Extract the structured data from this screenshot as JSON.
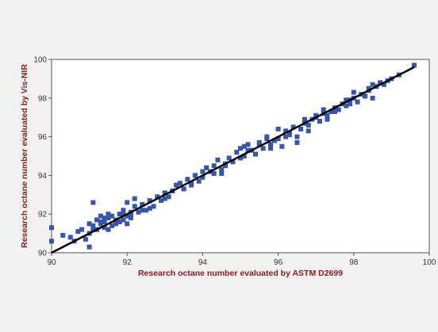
{
  "chart_data": {
    "type": "scatter",
    "title": "",
    "xlabel": "Research octane number evaluated by ASTM D2699",
    "ylabel": "Research octane number evaluated by Vis-NIR",
    "xlim": [
      90,
      100
    ],
    "ylim": [
      90,
      100
    ],
    "x_ticks": [
      "90",
      "92",
      "94",
      "96",
      "98",
      "100"
    ],
    "y_ticks": [
      "90",
      "92",
      "94",
      "96",
      "98",
      "100"
    ],
    "grid": false,
    "legend": "none",
    "colors": {
      "points": "#3a55a5",
      "fit_line": "#000000",
      "axis_title": "#8b1a1a",
      "plot_bg": "#ffffff",
      "figure_bg": "#f2f2f2"
    },
    "fit_line": {
      "from": [
        90.0,
        90.0
      ],
      "to": [
        99.6,
        99.6
      ]
    },
    "series": [
      {
        "x": [
          90.0,
          90.0,
          90.3,
          90.5,
          90.6,
          90.7,
          90.8,
          90.9,
          91.0,
          91.0,
          91.1,
          91.1,
          91.2,
          91.2,
          91.3,
          91.3,
          91.4,
          91.4,
          91.5,
          91.5,
          91.6,
          91.6,
          91.7,
          91.7,
          91.8,
          91.8,
          91.9,
          91.9,
          92.0,
          92.0,
          92.1,
          92.1,
          92.2,
          92.3,
          92.4,
          92.5,
          92.6,
          92.7,
          92.8,
          92.9,
          93.0,
          93.1,
          93.2,
          93.3,
          93.4,
          93.5,
          93.6,
          93.7,
          93.8,
          93.9,
          94.0,
          94.1,
          94.2,
          94.3,
          94.4,
          94.5,
          94.6,
          94.7,
          94.8,
          94.9,
          95.0,
          95.1,
          95.2,
          95.3,
          95.4,
          95.5,
          95.6,
          95.7,
          95.8,
          95.9,
          96.0,
          96.1,
          96.2,
          96.3,
          96.4,
          96.5,
          96.6,
          96.7,
          96.8,
          96.9,
          97.0,
          97.1,
          97.2,
          97.3,
          97.4,
          97.5,
          97.6,
          97.7,
          97.8,
          97.9,
          98.0,
          98.1,
          98.2,
          98.3,
          98.4,
          98.5,
          98.6,
          98.8,
          99.0,
          99.2,
          99.6,
          91.0,
          91.2,
          91.5,
          92.0,
          92.2,
          93.5,
          94.0,
          94.5,
          95.0,
          95.5,
          96.0,
          96.5,
          97.0,
          97.5,
          98.0,
          98.5,
          91.1,
          91.3,
          91.7,
          92.1,
          92.6,
          93.2,
          93.8,
          94.6,
          95.2,
          95.8,
          96.3,
          96.8,
          97.3,
          97.8,
          98.3,
          98.7,
          91.4,
          91.9,
          92.4,
          93.0,
          93.7,
          94.3,
          95.1,
          95.7,
          96.2,
          96.7,
          97.2,
          97.9,
          98.4,
          98.9
        ],
        "y": [
          90.6,
          91.3,
          90.9,
          90.8,
          90.6,
          91.1,
          91.2,
          90.7,
          91.5,
          91.0,
          92.6,
          91.4,
          91.2,
          91.7,
          91.6,
          91.9,
          91.3,
          91.6,
          91.8,
          91.2,
          91.4,
          91.9,
          91.7,
          91.5,
          92.0,
          91.6,
          92.2,
          91.7,
          91.9,
          92.6,
          92.1,
          91.8,
          92.4,
          92.1,
          92.5,
          92.2,
          92.7,
          92.4,
          92.9,
          92.7,
          93.1,
          92.9,
          93.2,
          93.5,
          93.6,
          93.3,
          93.8,
          93.5,
          94.0,
          93.7,
          93.9,
          94.4,
          94.2,
          94.5,
          94.8,
          94.3,
          94.6,
          94.9,
          94.7,
          95.2,
          95.4,
          95.0,
          95.6,
          95.3,
          95.1,
          95.7,
          95.4,
          96.0,
          95.6,
          95.8,
          95.9,
          95.5,
          96.3,
          96.1,
          96.5,
          96.0,
          96.4,
          96.7,
          96.3,
          96.9,
          97.0,
          96.8,
          97.2,
          97.1,
          97.3,
          97.5,
          97.4,
          97.7,
          97.6,
          97.9,
          98.0,
          97.8,
          98.2,
          98.1,
          98.4,
          98.0,
          98.6,
          98.7,
          99.0,
          99.2,
          99.7,
          90.3,
          91.7,
          92.0,
          91.5,
          92.8,
          93.3,
          94.2,
          94.1,
          94.9,
          95.6,
          96.4,
          95.7,
          97.1,
          97.3,
          98.3,
          98.7,
          91.2,
          91.5,
          91.5,
          91.9,
          92.3,
          93.2,
          94.0,
          94.5,
          95.3,
          95.4,
          96.2,
          96.6,
          96.9,
          97.9,
          98.1,
          98.8,
          91.8,
          92.0,
          92.2,
          92.8,
          93.6,
          94.1,
          95.5,
          95.9,
          96.0,
          96.9,
          97.4,
          97.7,
          98.5,
          98.9
        ]
      }
    ]
  }
}
